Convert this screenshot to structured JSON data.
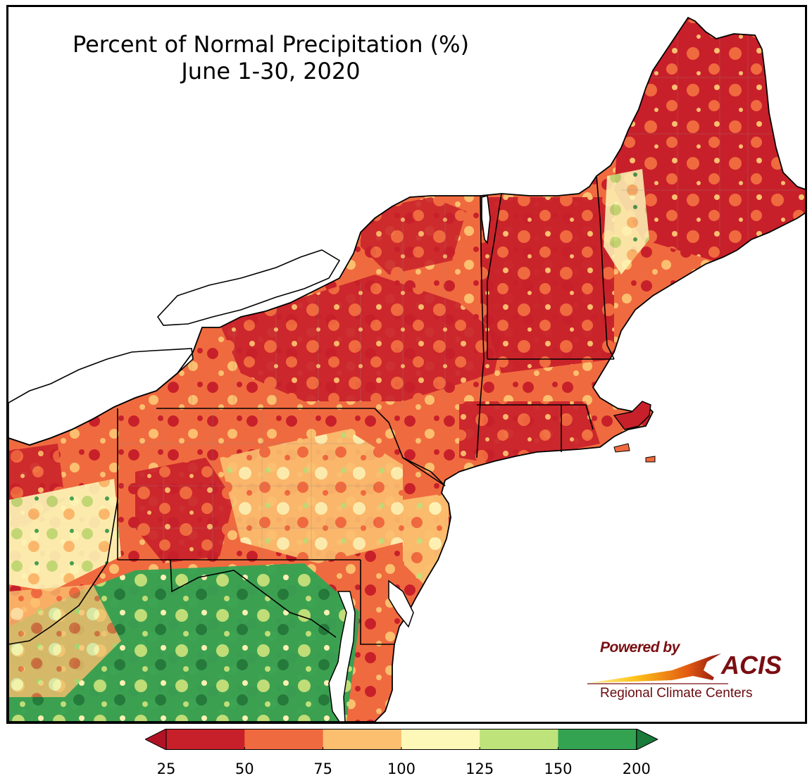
{
  "title": {
    "line1": "Percent of Normal Precipitation (%)",
    "line2": "June 1-30, 2020"
  },
  "logo": {
    "powered_by": "Powered by",
    "brand": "ACIS",
    "subtitle": "Regional Climate Centers"
  },
  "colorbar": {
    "ticks": [
      "25",
      "50",
      "75",
      "100",
      "125",
      "150",
      "200"
    ],
    "bins": [
      {
        "from": 25,
        "to": 50,
        "color": "#c8202a"
      },
      {
        "from": 50,
        "to": 75,
        "color": "#f06a3f"
      },
      {
        "from": 75,
        "to": 100,
        "color": "#fbbf6f"
      },
      {
        "from": 100,
        "to": 125,
        "color": "#fdf8b8"
      },
      {
        "from": 125,
        "to": 150,
        "color": "#bde37a"
      },
      {
        "from": 150,
        "to": 200,
        "color": "#33a352"
      }
    ],
    "under_color": "#b01326",
    "over_color": "#1a7a3a",
    "extend": "both"
  },
  "map": {
    "region": "Northeast United States",
    "water_color": "#ffffff",
    "boundary_color": "#000000"
  }
}
